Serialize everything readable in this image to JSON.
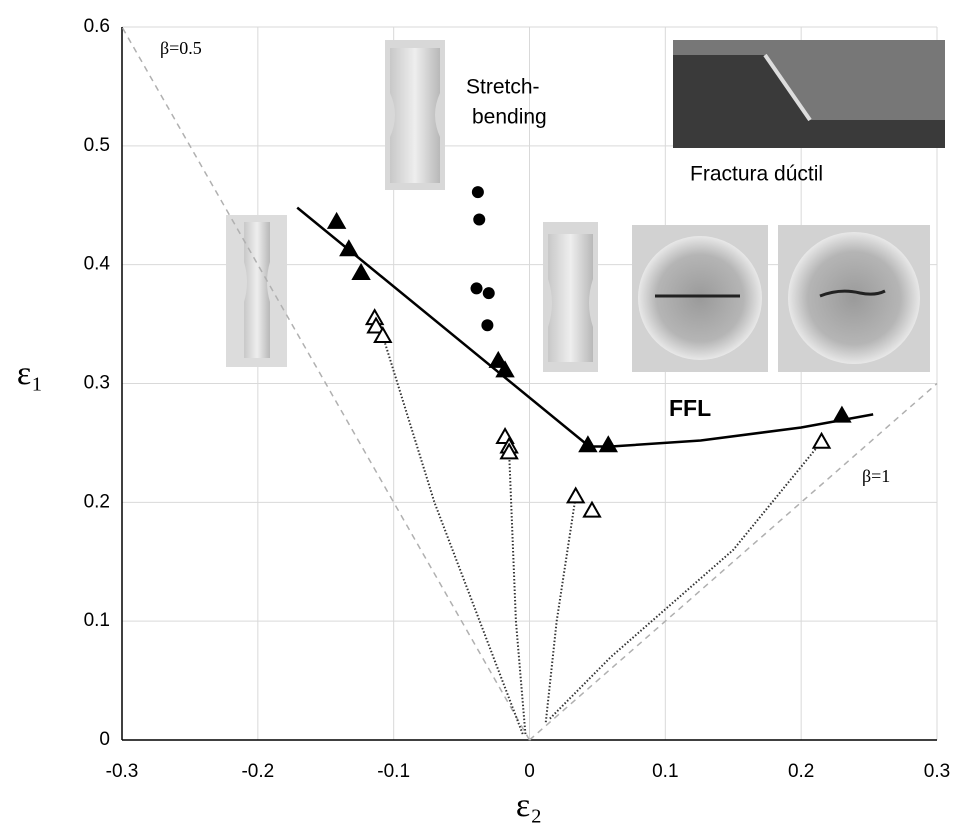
{
  "chart_data": {
    "type": "scatter",
    "x_label": "ε₂",
    "y_label": "ε₁",
    "xlim": [
      -0.3,
      0.3
    ],
    "xticks": [
      -0.3,
      -0.2,
      -0.1,
      0,
      0.1,
      0.2,
      0.3
    ],
    "ylim": [
      0,
      0.6
    ],
    "yticks": [
      0,
      0.1,
      0.2,
      0.3,
      0.4,
      0.5,
      0.6
    ],
    "grid": true,
    "series": [
      {
        "style": "line-dashed",
        "color": "#b0b0b0",
        "x": [
          0,
          -0.3
        ],
        "y": [
          0,
          0.6
        ]
      },
      {
        "style": "line-dashed",
        "color": "#b0b0b0",
        "x": [
          0,
          0.3
        ],
        "y": [
          0,
          0.3
        ]
      },
      {
        "style": "line-dotted",
        "color": "#333333",
        "x": [
          -0.005,
          -0.03,
          -0.07,
          -0.108
        ],
        "y": [
          0.005,
          0.08,
          0.2,
          0.34
        ]
      },
      {
        "style": "line-dotted",
        "color": "#333333",
        "x": [
          -0.003,
          -0.01,
          -0.015
        ],
        "y": [
          0.005,
          0.1,
          0.242
        ]
      },
      {
        "style": "line-dotted",
        "color": "#333333",
        "x": [
          0.012,
          0.02,
          0.034
        ],
        "y": [
          0.015,
          0.1,
          0.205
        ]
      },
      {
        "style": "line-dotted",
        "color": "#333333",
        "x": [
          0.015,
          0.06,
          0.15,
          0.215
        ],
        "y": [
          0.018,
          0.07,
          0.16,
          0.251
        ]
      },
      {
        "style": "line-solid",
        "color": "#000000",
        "x": [
          -0.171,
          0.044,
          0.06,
          0.126,
          0.2,
          0.253
        ],
        "y": [
          0.448,
          0.247,
          0.247,
          0.252,
          0.263,
          0.274
        ]
      },
      {
        "style": "triangle-filled",
        "color": "#000000",
        "x": [
          -0.142,
          -0.133,
          -0.124,
          -0.023,
          -0.018,
          0.043,
          0.058,
          0.23
        ],
        "y": [
          0.436,
          0.413,
          0.393,
          0.319,
          0.311,
          0.248,
          0.248,
          0.273
        ]
      },
      {
        "style": "triangle-open",
        "color": "#000000",
        "x": [
          -0.114,
          -0.113,
          -0.108,
          -0.018,
          -0.015,
          -0.015,
          0.034,
          0.046,
          0.215
        ],
        "y": [
          0.355,
          0.348,
          0.34,
          0.255,
          0.247,
          0.242,
          0.205,
          0.193,
          0.251
        ]
      },
      {
        "style": "circle-filled",
        "color": "#000000",
        "x": [
          -0.038,
          -0.037,
          -0.039,
          -0.03,
          -0.031
        ],
        "y": [
          0.461,
          0.438,
          0.38,
          0.376,
          0.349
        ]
      }
    ],
    "annotations": [
      {
        "text": "β=0.5"
      },
      {
        "text": "β=1"
      },
      {
        "text": "Stretch-"
      },
      {
        "text": "bending"
      },
      {
        "text": "Fractura dúctil"
      },
      {
        "text": "FFL"
      }
    ]
  }
}
